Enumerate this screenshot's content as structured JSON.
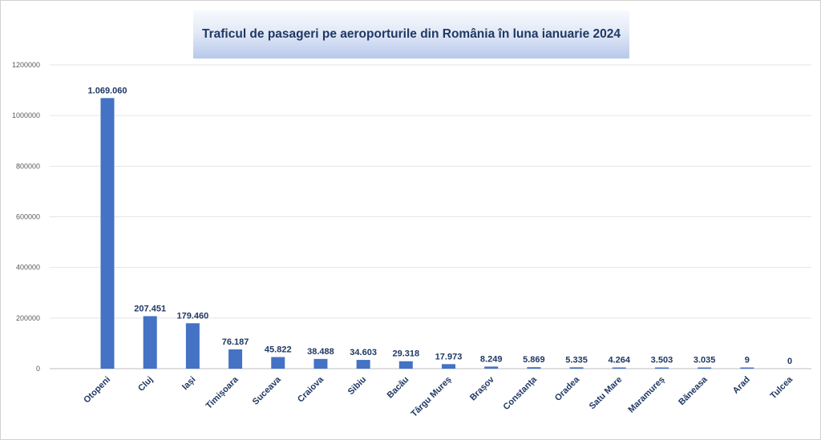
{
  "chart_data": {
    "type": "bar",
    "title": "Traficul de pasageri pe aeroporturile din România în luna ianuarie 2024",
    "xlabel": "",
    "ylabel": "",
    "ylim": [
      0,
      1200000
    ],
    "yticks": [
      0,
      200000,
      400000,
      600000,
      800000,
      1000000,
      1200000
    ],
    "ytick_labels": [
      "0",
      "200000",
      "400000",
      "600000",
      "800000",
      "1000000",
      "1200000"
    ],
    "grid": true,
    "legend": "none",
    "bar_color": "#4472c4",
    "categories": [
      "Otopeni",
      "Cluj",
      "Iași",
      "Timișoara",
      "Suceava",
      "Craiova",
      "Sibiu",
      "Bacău",
      "Târgu Mureș",
      "Brașov",
      "Constanța",
      "Oradea",
      "Satu Mare",
      "Maramureș",
      "Băneasa",
      "Arad",
      "Tulcea"
    ],
    "values": [
      1069060,
      207451,
      179460,
      76187,
      45822,
      38488,
      34603,
      29318,
      17973,
      8249,
      5869,
      5335,
      4264,
      3503,
      3035,
      9,
      0
    ],
    "value_labels": [
      "1.069.060",
      "207.451",
      "179.460",
      "76.187",
      "45.822",
      "38.488",
      "34.603",
      "29.318",
      "17.973",
      "8.249",
      "5.869",
      "5.335",
      "4.264",
      "3.503",
      "3.035",
      "9",
      "0"
    ]
  }
}
